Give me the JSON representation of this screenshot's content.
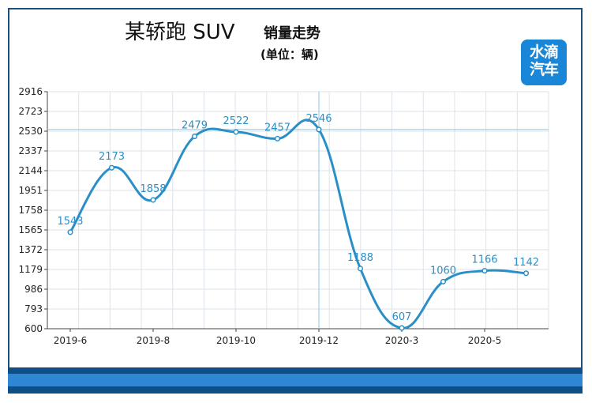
{
  "header": {
    "title": "某轿跑 SUV",
    "subtitle": "销量走势",
    "unit": "(单位：辆)"
  },
  "logo": {
    "line1": "水滴",
    "line2": "汽车"
  },
  "chart_data": {
    "type": "line",
    "smooth": true,
    "x_ticks": [
      "2019-6",
      "2019-8",
      "2019-10",
      "2019-12",
      "2020-3",
      "2020-5"
    ],
    "y_ticks": [
      600,
      793,
      986,
      1179,
      1372,
      1565,
      1758,
      1951,
      2144,
      2337,
      2530,
      2723,
      2916
    ],
    "ylim": [
      600,
      2916
    ],
    "grid": true,
    "series": [
      {
        "values": [
          1543,
          2173,
          1858,
          2479,
          2522,
          2457,
          2546,
          1188,
          607,
          1060,
          1166,
          1142
        ],
        "labels": [
          "1543",
          "2173",
          "1858",
          "2479",
          "2522",
          "2457",
          "2546",
          "1188",
          "607",
          "1060",
          "1166",
          "1142"
        ]
      }
    ],
    "crosshair": {
      "index": 6,
      "value": 2546
    },
    "colors": {
      "line": "#2b8fc7",
      "grid": "#dde3ea",
      "crosshair": "#8cc4e6",
      "axis": "#444444",
      "frame": "#1c4f7a",
      "band_dark": "#0e4f86",
      "band_light": "#2f86d2",
      "logo": "#1a86d8"
    }
  }
}
